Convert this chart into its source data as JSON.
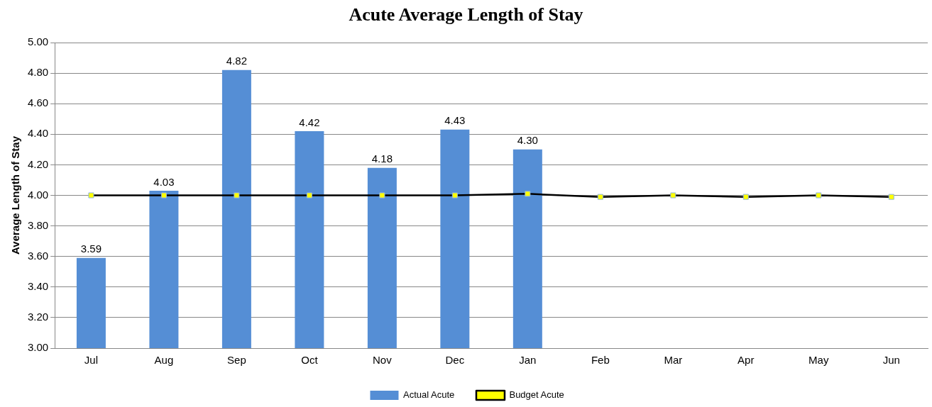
{
  "chart_data": {
    "type": "bar",
    "title": "Acute Average Length of Stay",
    "ylabel": "Average Length of Stay",
    "categories": [
      "Jul",
      "Aug",
      "Sep",
      "Oct",
      "Nov",
      "Dec",
      "Jan",
      "Feb",
      "Mar",
      "Apr",
      "May",
      "Jun"
    ],
    "series": [
      {
        "name": "Actual Acute",
        "color": "#558ed5",
        "values": [
          3.59,
          4.03,
          4.82,
          4.42,
          4.18,
          4.43,
          4.3,
          null,
          null,
          null,
          null,
          null
        ],
        "value_labels": [
          "3.59",
          "4.03",
          "4.82",
          "4.42",
          "4.18",
          "4.43",
          "4.30",
          null,
          null,
          null,
          null,
          null
        ]
      },
      {
        "name": "Budget Acute",
        "type": "line",
        "color": "#000000",
        "marker": "square",
        "values": [
          4.0,
          4.0,
          4.0,
          4.0,
          4.0,
          4.0,
          4.01,
          3.99,
          4.0,
          3.99,
          4.0,
          3.99
        ]
      }
    ],
    "ylim": [
      3.0,
      5.0
    ],
    "yticks": [
      {
        "value": 3.0,
        "label": "3.00"
      },
      {
        "value": 3.2,
        "label": "3.20"
      },
      {
        "value": 3.4,
        "label": "3.40"
      },
      {
        "value": 3.6,
        "label": "3.60"
      },
      {
        "value": 3.8,
        "label": "3.80"
      },
      {
        "value": 4.0,
        "label": "4.00"
      },
      {
        "value": 4.2,
        "label": "4.20"
      },
      {
        "value": 4.4,
        "label": "4.40"
      },
      {
        "value": 4.6,
        "label": "4.60"
      },
      {
        "value": 4.8,
        "label": "4.80"
      },
      {
        "value": 5.0,
        "label": "5.00"
      }
    ],
    "grid": "y",
    "legend": "bottom"
  }
}
